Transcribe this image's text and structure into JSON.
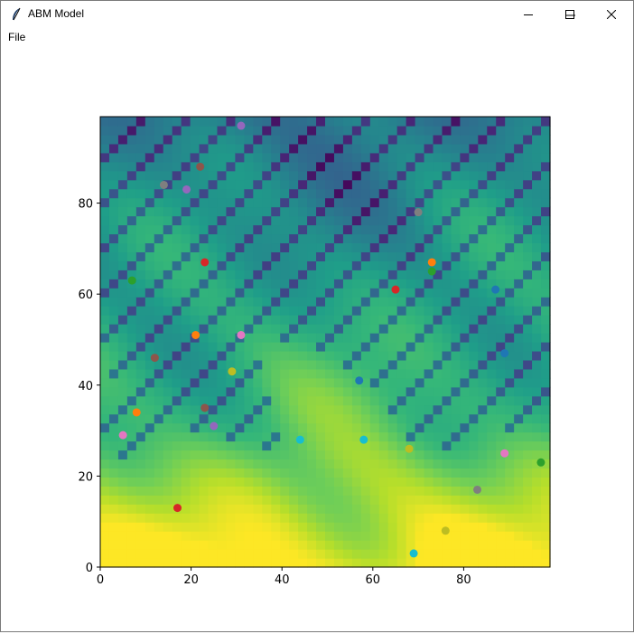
{
  "window": {
    "title": "ABM Model",
    "icons": {
      "app": "feather-icon",
      "minimize": "minimize-icon",
      "maximize": "maximize-icon",
      "close": "close-icon"
    }
  },
  "menu": {
    "items": [
      {
        "label": "File"
      }
    ]
  },
  "chart_data": {
    "type": "heatmap-scatter",
    "title": "",
    "xlabel": "",
    "ylabel": "",
    "xlim": [
      0,
      99
    ],
    "ylim": [
      0,
      99
    ],
    "xticks": [
      0,
      20,
      40,
      60,
      80
    ],
    "yticks": [
      0,
      20,
      40,
      60,
      80
    ],
    "colormap": "viridis",
    "agents": [
      {
        "x": 31,
        "y": 97,
        "color": "#9467bd"
      },
      {
        "x": 22,
        "y": 88,
        "color": "#8c564b"
      },
      {
        "x": 14,
        "y": 84,
        "color": "#7f7f7f"
      },
      {
        "x": 19,
        "y": 83,
        "color": "#9467bd"
      },
      {
        "x": 70,
        "y": 78,
        "color": "#7f7f7f"
      },
      {
        "x": 23,
        "y": 67,
        "color": "#d62728"
      },
      {
        "x": 73,
        "y": 67,
        "color": "#ff7f0e"
      },
      {
        "x": 73,
        "y": 65,
        "color": "#2ca02c"
      },
      {
        "x": 7,
        "y": 63,
        "color": "#2ca02c"
      },
      {
        "x": 65,
        "y": 61,
        "color": "#d62728"
      },
      {
        "x": 87,
        "y": 61,
        "color": "#1f77b4"
      },
      {
        "x": 21,
        "y": 51,
        "color": "#ff7f0e"
      },
      {
        "x": 31,
        "y": 51,
        "color": "#e377c2"
      },
      {
        "x": 89,
        "y": 47,
        "color": "#1f77b4"
      },
      {
        "x": 12,
        "y": 46,
        "color": "#8c564b"
      },
      {
        "x": 29,
        "y": 43,
        "color": "#bcbd22"
      },
      {
        "x": 57,
        "y": 41,
        "color": "#1f77b4"
      },
      {
        "x": 23,
        "y": 35,
        "color": "#8c564b"
      },
      {
        "x": 8,
        "y": 34,
        "color": "#ff7f0e"
      },
      {
        "x": 25,
        "y": 31,
        "color": "#9467bd"
      },
      {
        "x": 5,
        "y": 29,
        "color": "#e377c2"
      },
      {
        "x": 44,
        "y": 28,
        "color": "#17becf"
      },
      {
        "x": 58,
        "y": 28,
        "color": "#17becf"
      },
      {
        "x": 68,
        "y": 26,
        "color": "#bcbd22"
      },
      {
        "x": 89,
        "y": 25,
        "color": "#e377c2"
      },
      {
        "x": 97,
        "y": 23,
        "color": "#2ca02c"
      },
      {
        "x": 83,
        "y": 17,
        "color": "#7f7f7f"
      },
      {
        "x": 17,
        "y": 13,
        "color": "#d62728"
      },
      {
        "x": 76,
        "y": 8,
        "color": "#bcbd22"
      },
      {
        "x": 69,
        "y": 3,
        "color": "#17becf"
      }
    ]
  }
}
